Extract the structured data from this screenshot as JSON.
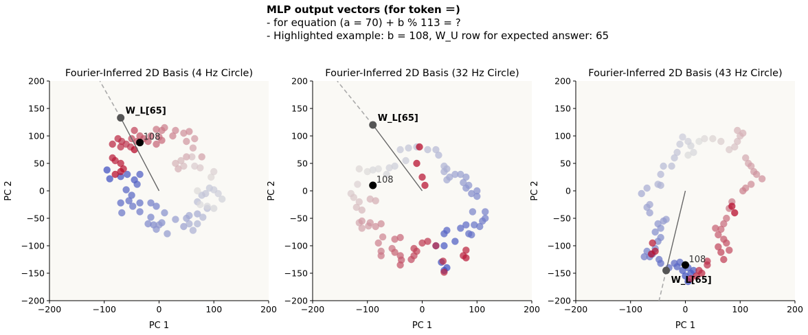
{
  "header": {
    "title": "MLP output vectors (for token ＝)",
    "line1": "- for equation (a = 70) + b % 113 = ?",
    "line2": "- Highlighted example: b = 108, W_U row for expected answer: 65"
  },
  "colors": {
    "plot_bg": "#faf9f5",
    "cool": "#3b4cc0",
    "mid": "#dddcdc",
    "warm": "#b40426",
    "highlight": "#000000",
    "wl_point": "#555555",
    "line": "#666666",
    "dash": "#aaaaaa"
  },
  "chart_data": [
    {
      "type": "scatter",
      "title": "Fourier-Inferred 2D Basis (4 Hz Circle)",
      "xlabel": "PC 1",
      "ylabel": "PC 2",
      "xlim": [
        -200,
        200
      ],
      "ylim": [
        -200,
        200
      ],
      "xticks": [
        -200,
        -100,
        0,
        100,
        200
      ],
      "yticks": [
        -200,
        -150,
        -100,
        -50,
        0,
        50,
        100,
        150,
        200
      ],
      "xtick_labels": [
        "−200",
        "−100",
        "0",
        "100",
        "200"
      ],
      "ytick_labels": [
        "−200",
        "−150",
        "−100",
        "−50",
        "0",
        "50",
        "100",
        "150",
        "200"
      ],
      "points": [
        [
          -95,
          38
        ],
        [
          -90,
          22
        ],
        [
          -70,
          26
        ],
        [
          -58,
          30
        ],
        [
          -45,
          20
        ],
        [
          -35,
          30
        ],
        [
          -40,
          12
        ],
        [
          -60,
          2
        ],
        [
          -50,
          -8
        ],
        [
          -70,
          -22
        ],
        [
          -55,
          -18
        ],
        [
          -35,
          -22
        ],
        [
          -48,
          -28
        ],
        [
          -68,
          -40
        ],
        [
          -35,
          -38
        ],
        [
          -15,
          -22
        ],
        [
          -5,
          -28
        ],
        [
          -15,
          -48
        ],
        [
          -10,
          -62
        ],
        [
          -20,
          -60
        ],
        [
          5,
          -58
        ],
        [
          10,
          -40
        ],
        [
          -5,
          -70
        ],
        [
          0,
          -62
        ],
        [
          15,
          -78
        ],
        [
          30,
          -52
        ],
        [
          45,
          -65
        ],
        [
          50,
          -50
        ],
        [
          55,
          -45
        ],
        [
          70,
          -42
        ],
        [
          55,
          -60
        ],
        [
          62,
          -72
        ],
        [
          70,
          -60
        ],
        [
          80,
          -48
        ],
        [
          88,
          -32
        ],
        [
          70,
          -20
        ],
        [
          78,
          -8
        ],
        [
          85,
          -5
        ],
        [
          92,
          5
        ],
        [
          100,
          2
        ],
        [
          108,
          -5
        ],
        [
          115,
          -15
        ],
        [
          100,
          -32
        ],
        [
          88,
          -28
        ],
        [
          75,
          -25
        ],
        [
          70,
          0
        ],
        [
          95,
          25
        ],
        [
          100,
          35
        ],
        [
          65,
          45
        ],
        [
          75,
          42
        ],
        [
          60,
          62
        ],
        [
          45,
          45
        ],
        [
          40,
          55
        ],
        [
          30,
          50
        ],
        [
          35,
          40
        ],
        [
          50,
          62
        ],
        [
          62,
          78
        ],
        [
          78,
          62
        ],
        [
          65,
          95
        ],
        [
          50,
          90
        ],
        [
          45,
          105
        ],
        [
          55,
          108
        ],
        [
          30,
          110
        ],
        [
          25,
          100
        ],
        [
          10,
          115
        ],
        [
          5,
          110
        ],
        [
          -5,
          112
        ],
        [
          0,
          98
        ],
        [
          5,
          92
        ],
        [
          -5,
          85
        ],
        [
          -15,
          100
        ],
        [
          -20,
          90
        ],
        [
          -28,
          95
        ],
        [
          -35,
          100
        ],
        [
          -40,
          90
        ],
        [
          -50,
          95
        ],
        [
          -45,
          110
        ],
        [
          -52,
          80
        ],
        [
          -60,
          85
        ],
        [
          -68,
          90
        ],
        [
          -70,
          80
        ],
        [
          -75,
          95
        ],
        [
          -85,
          85
        ],
        [
          -80,
          55
        ],
        [
          -85,
          60
        ],
        [
          -70,
          50
        ],
        [
          -65,
          40
        ],
        [
          -70,
          35
        ],
        [
          -80,
          30
        ],
        [
          -45,
          75
        ]
      ],
      "highlight": {
        "label": "108",
        "x": -35,
        "y": 88
      },
      "wl": {
        "label": "W_L[65]",
        "x": -70,
        "y": 133
      },
      "dash_end": {
        "x": -108,
        "y": 200
      }
    },
    {
      "type": "scatter",
      "title": "Fourier-Inferred 2D Basis (32 Hz Circle)",
      "xlabel": "PC 1",
      "ylabel": "PC 2",
      "xlim": [
        -200,
        200
      ],
      "ylim": [
        -200,
        200
      ],
      "xticks": [
        -200,
        -100,
        0,
        100,
        200
      ],
      "yticks": [
        -200,
        -150,
        -100,
        -50,
        0,
        50,
        100,
        150,
        200
      ],
      "xtick_labels": [
        "−200",
        "−100",
        "0",
        "100",
        "200"
      ],
      "ytick_labels": [
        "−200",
        "−150",
        "−100",
        "−50",
        "0",
        "50",
        "100",
        "150",
        "200"
      ],
      "points": [
        [
          40,
          -145
        ],
        [
          45,
          -140
        ],
        [
          35,
          -130
        ],
        [
          25,
          -100
        ],
        [
          40,
          -100
        ],
        [
          60,
          -92
        ],
        [
          40,
          -78
        ],
        [
          45,
          -72
        ],
        [
          70,
          -68
        ],
        [
          80,
          -62
        ],
        [
          85,
          -78
        ],
        [
          90,
          -80
        ],
        [
          95,
          -62
        ],
        [
          105,
          -65
        ],
        [
          110,
          -55
        ],
        [
          115,
          -50
        ],
        [
          115,
          -38
        ],
        [
          92,
          -38
        ],
        [
          100,
          -10
        ],
        [
          90,
          -5
        ],
        [
          100,
          0
        ],
        [
          80,
          5
        ],
        [
          85,
          10
        ],
        [
          75,
          15
        ],
        [
          80,
          25
        ],
        [
          70,
          30
        ],
        [
          60,
          30
        ],
        [
          50,
          25
        ],
        [
          45,
          20
        ],
        [
          40,
          35
        ],
        [
          45,
          40
        ],
        [
          40,
          45
        ],
        [
          30,
          65
        ],
        [
          25,
          75
        ],
        [
          10,
          75
        ],
        [
          -10,
          80
        ],
        [
          -25,
          78
        ],
        [
          -40,
          75
        ],
        [
          -30,
          55
        ],
        [
          -50,
          45
        ],
        [
          -60,
          42
        ],
        [
          -65,
          30
        ],
        [
          -90,
          38
        ],
        [
          -80,
          40
        ],
        [
          -100,
          35
        ],
        [
          -115,
          40
        ],
        [
          -118,
          12
        ],
        [
          -130,
          -5
        ],
        [
          -125,
          -12
        ],
        [
          -115,
          -20
        ],
        [
          -120,
          -30
        ],
        [
          -110,
          -35
        ],
        [
          -95,
          -15
        ],
        [
          -85,
          -18
        ],
        [
          -115,
          -58
        ],
        [
          -110,
          -68
        ],
        [
          -98,
          -64
        ],
        [
          -110,
          -55
        ],
        [
          -95,
          -58
        ],
        [
          -85,
          -65
        ],
        [
          -75,
          -60
        ],
        [
          -72,
          -84
        ],
        [
          -80,
          -95
        ],
        [
          -75,
          -110
        ],
        [
          -75,
          -118
        ],
        [
          -55,
          -105
        ],
        [
          -50,
          -88
        ],
        [
          -40,
          -85
        ],
        [
          -50,
          -112
        ],
        [
          -40,
          -118
        ],
        [
          -38,
          -126
        ],
        [
          -40,
          -135
        ],
        [
          -20,
          -125
        ],
        [
          -15,
          -118
        ],
        [
          -10,
          -110
        ],
        [
          -15,
          -105
        ],
        [
          0,
          -95
        ],
        [
          10,
          -92
        ],
        [
          25,
          -100
        ],
        [
          38,
          -128
        ],
        [
          40,
          -148
        ],
        [
          80,
          -108
        ],
        [
          75,
          -118
        ],
        [
          80,
          -122
        ],
        [
          0,
          25
        ],
        [
          5,
          10
        ],
        [
          -10,
          50
        ],
        [
          -5,
          80
        ]
      ],
      "highlight": {
        "label": "108",
        "x": -90,
        "y": 10
      },
      "wl": {
        "label": "W_L[65]",
        "x": -90,
        "y": 120
      },
      "dash_end": {
        "x": -155,
        "y": 200
      }
    },
    {
      "type": "scatter",
      "title": "Fourier-Inferred 2D Basis (43 Hz Circle)",
      "xlabel": "PC 1",
      "ylabel": "PC 2",
      "xlim": [
        -200,
        200
      ],
      "ylim": [
        -200,
        200
      ],
      "xticks": [
        -200,
        -100,
        0,
        100,
        200
      ],
      "yticks": [
        -200,
        -150,
        -100,
        -50,
        0,
        50,
        100,
        150,
        200
      ],
      "xtick_labels": [
        "−200",
        "−100",
        "0",
        "100",
        "200"
      ],
      "ytick_labels": [
        "−200",
        "−150",
        "−100",
        "−50",
        "0",
        "50",
        "100",
        "150",
        "200"
      ],
      "points": [
        [
          5,
          -165
        ],
        [
          0,
          -155
        ],
        [
          10,
          -150
        ],
        [
          -5,
          -145
        ],
        [
          15,
          -145
        ],
        [
          5,
          -140
        ],
        [
          -15,
          -138
        ],
        [
          -10,
          -130
        ],
        [
          -20,
          -132
        ],
        [
          -30,
          -140
        ],
        [
          -45,
          -132
        ],
        [
          -48,
          -125
        ],
        [
          -60,
          -115
        ],
        [
          -65,
          -120
        ],
        [
          -75,
          -120
        ],
        [
          -70,
          -110
        ],
        [
          -55,
          -105
        ],
        [
          -50,
          -92
        ],
        [
          -45,
          -85
        ],
        [
          -55,
          -75
        ],
        [
          -45,
          -68
        ],
        [
          -50,
          -60
        ],
        [
          -40,
          -55
        ],
        [
          -35,
          -52
        ],
        [
          -65,
          -40
        ],
        [
          -70,
          -30
        ],
        [
          -65,
          -25
        ],
        [
          -80,
          -5
        ],
        [
          -70,
          5
        ],
        [
          -45,
          10
        ],
        [
          -50,
          12
        ],
        [
          -45,
          30
        ],
        [
          -40,
          45
        ],
        [
          -25,
          45
        ],
        [
          -20,
          60
        ],
        [
          -15,
          70
        ],
        [
          -10,
          85
        ],
        [
          -5,
          98
        ],
        [
          5,
          90
        ],
        [
          10,
          82
        ],
        [
          15,
          70
        ],
        [
          5,
          65
        ],
        [
          25,
          90
        ],
        [
          35,
          95
        ],
        [
          50,
          95
        ],
        [
          65,
          90
        ],
        [
          80,
          75
        ],
        [
          90,
          80
        ],
        [
          95,
          90
        ],
        [
          100,
          100
        ],
        [
          95,
          110
        ],
        [
          105,
          105
        ],
        [
          110,
          60
        ],
        [
          115,
          50
        ],
        [
          120,
          45
        ],
        [
          125,
          35
        ],
        [
          130,
          30
        ],
        [
          140,
          22
        ],
        [
          120,
          12
        ],
        [
          110,
          5
        ],
        [
          105,
          0
        ],
        [
          85,
          -20
        ],
        [
          80,
          -32
        ],
        [
          75,
          -50
        ],
        [
          70,
          -60
        ],
        [
          65,
          -70
        ],
        [
          55,
          -68
        ],
        [
          60,
          -80
        ],
        [
          70,
          -88
        ],
        [
          75,
          -95
        ],
        [
          80,
          -108
        ],
        [
          60,
          -102
        ],
        [
          65,
          -112
        ],
        [
          70,
          -125
        ],
        [
          40,
          -128
        ],
        [
          40,
          -135
        ],
        [
          25,
          -145
        ],
        [
          30,
          -150
        ],
        [
          20,
          -155
        ],
        [
          10,
          -160
        ],
        [
          -60,
          -95
        ],
        [
          -55,
          -110
        ],
        [
          -62,
          -115
        ],
        [
          85,
          -28
        ],
        [
          90,
          -40
        ]
      ],
      "highlight": {
        "label": "108",
        "x": 0,
        "y": -135
      },
      "wl": {
        "label": "W_L[65]",
        "x": -35,
        "y": -145
      },
      "dash_end": {
        "x": -48,
        "y": -200
      }
    }
  ]
}
